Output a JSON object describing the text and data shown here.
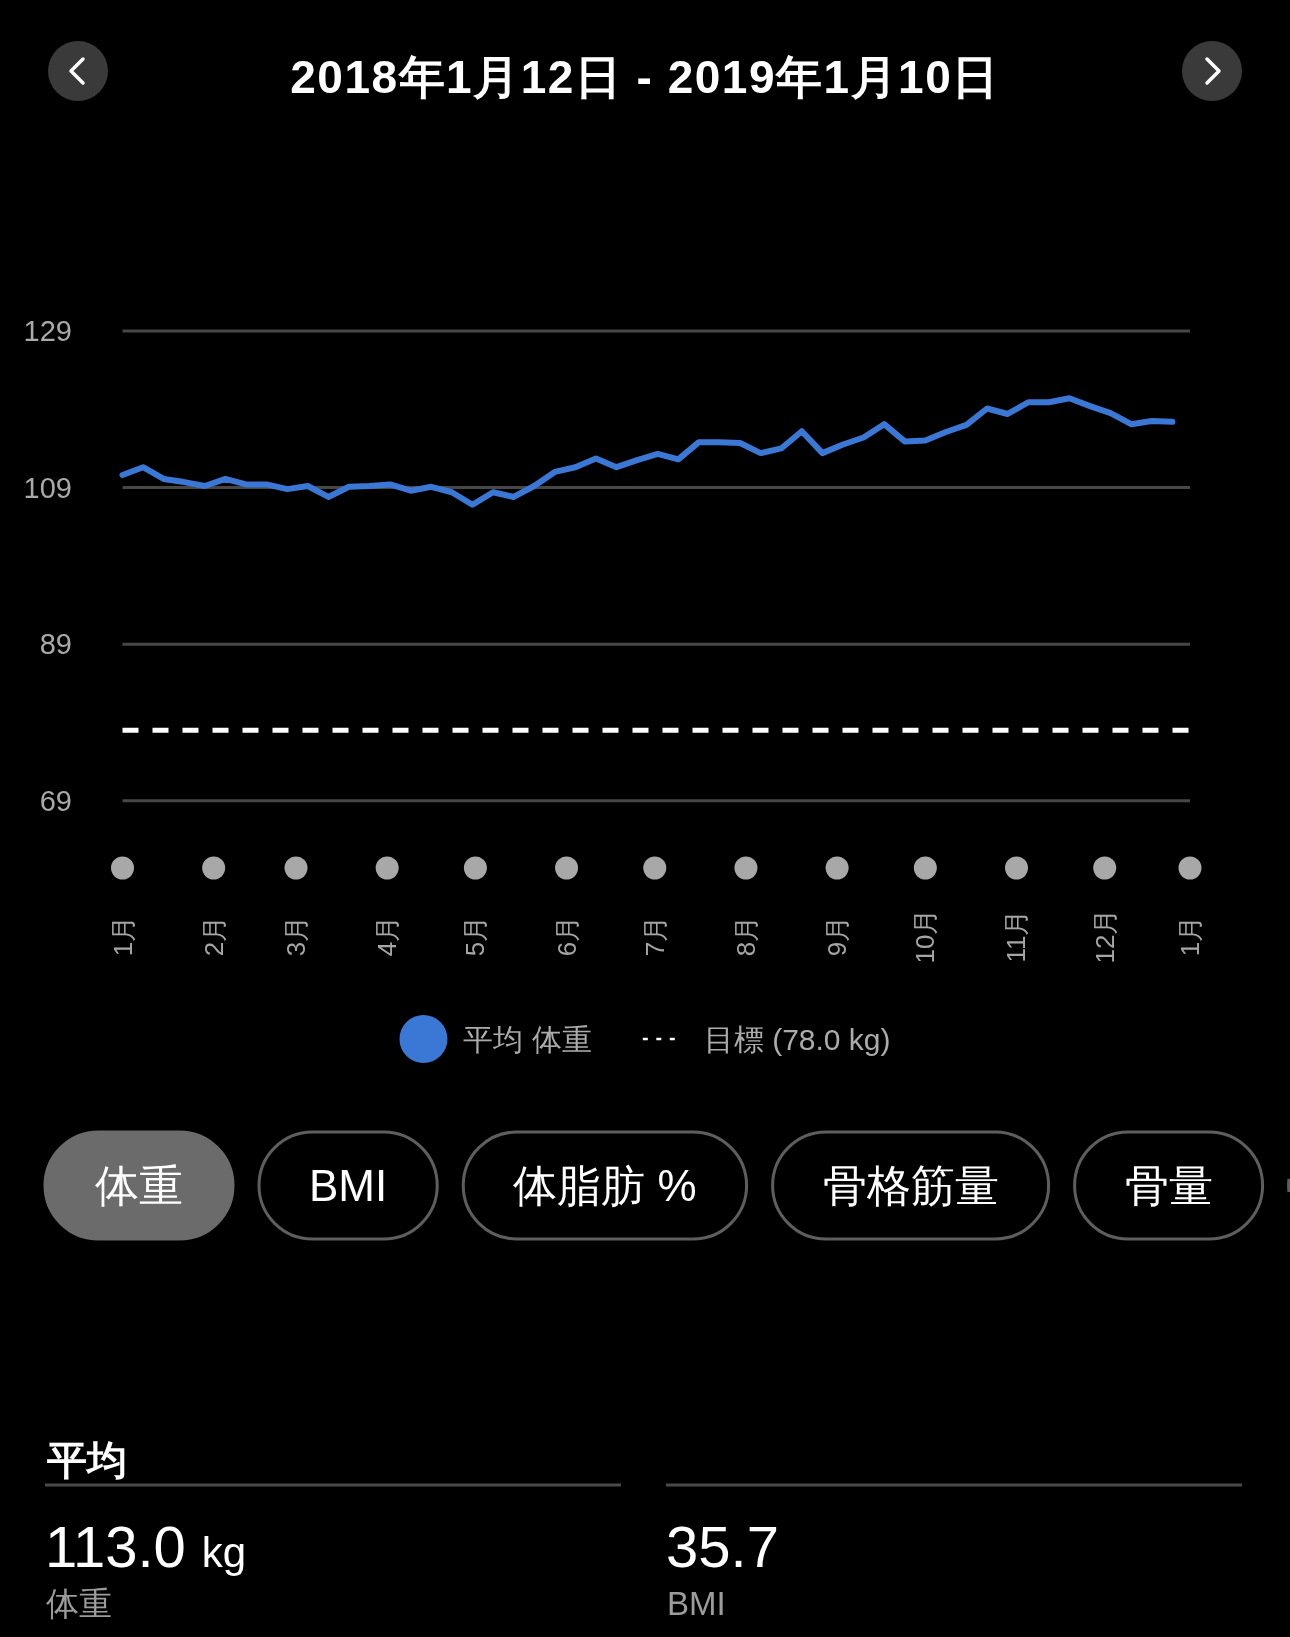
{
  "chart_data": [
    {
      "type": "line",
      "title": "2018年1月12日 - 2019年1月10日",
      "x": [
        "2018-01-12",
        "2018-01-19",
        "2018-01-26",
        "2018-02-02",
        "2018-02-09",
        "2018-02-16",
        "2018-02-23",
        "2018-03-02",
        "2018-03-09",
        "2018-03-16",
        "2018-03-23",
        "2018-03-30",
        "2018-04-06",
        "2018-04-13",
        "2018-04-20",
        "2018-04-27",
        "2018-05-04",
        "2018-05-11",
        "2018-05-18",
        "2018-05-25",
        "2018-06-01",
        "2018-06-08",
        "2018-06-15",
        "2018-06-22",
        "2018-06-29",
        "2018-07-06",
        "2018-07-13",
        "2018-07-20",
        "2018-07-27",
        "2018-08-03",
        "2018-08-10",
        "2018-08-17",
        "2018-08-24",
        "2018-08-31",
        "2018-09-07",
        "2018-09-14",
        "2018-09-21",
        "2018-09-28",
        "2018-10-05",
        "2018-10-12",
        "2018-10-19",
        "2018-10-26",
        "2018-11-02",
        "2018-11-09",
        "2018-11-16",
        "2018-11-23",
        "2018-11-30",
        "2018-12-07",
        "2018-12-14",
        "2018-12-21",
        "2018-12-28",
        "2019-01-04"
      ],
      "series": [
        {
          "name": "平均 体重",
          "color": "#3b77d4",
          "values": [
            110.6,
            111.6,
            110.1,
            109.7,
            109.2,
            110.1,
            109.4,
            109.4,
            108.8,
            109.2,
            107.8,
            109.1,
            109.2,
            109.4,
            108.6,
            109.1,
            108.4,
            106.8,
            108.4,
            107.8,
            109.2,
            111.0,
            111.6,
            112.7,
            111.6,
            112.5,
            113.3,
            112.6,
            114.8,
            114.8,
            114.7,
            113.4,
            114.0,
            116.2,
            113.4,
            114.5,
            115.4,
            117.1,
            114.9,
            115.0,
            116.1,
            117.0,
            119.1,
            118.4,
            119.9,
            119.9,
            120.4,
            119.4,
            118.5,
            117.1,
            117.5,
            117.4
          ]
        }
      ],
      "xlim": [
        "2018-01-12",
        "2019-01-10"
      ],
      "xticks": [
        {
          "value": "2018-01-12",
          "label": "1月"
        },
        {
          "value": "2018-02-12",
          "label": "2月"
        },
        {
          "value": "2018-03-12",
          "label": "3月"
        },
        {
          "value": "2018-04-12",
          "label": "4月"
        },
        {
          "value": "2018-05-12",
          "label": "5月"
        },
        {
          "value": "2018-06-12",
          "label": "6月"
        },
        {
          "value": "2018-07-12",
          "label": "7月"
        },
        {
          "value": "2018-08-12",
          "label": "8月"
        },
        {
          "value": "2018-09-12",
          "label": "9月"
        },
        {
          "value": "2018-10-12",
          "label": "10月"
        },
        {
          "value": "2018-11-12",
          "label": "11月"
        },
        {
          "value": "2018-12-12",
          "label": "12月"
        },
        {
          "value": "2019-01-10",
          "label": "1月"
        }
      ],
      "ylim": [
        69,
        129
      ],
      "yticks": [
        69,
        89,
        109,
        129
      ],
      "grid": "y",
      "ref_lines": [
        {
          "axis": "y",
          "value": 78,
          "label": "目標 (78.0 kg)",
          "color": "#ffffff",
          "line_style": "dashed"
        }
      ],
      "legend": "bottom"
    },
    {
      "type": "other",
      "annotations": [
        "体重",
        "BMI",
        "体脂肪 %",
        "骨格筋量",
        "骨量"
      ]
    },
    {
      "type": "other",
      "title": "平均",
      "annotations": [
        "113.0",
        "kg",
        "体重",
        "35.7",
        "BMI"
      ]
    }
  ]
}
